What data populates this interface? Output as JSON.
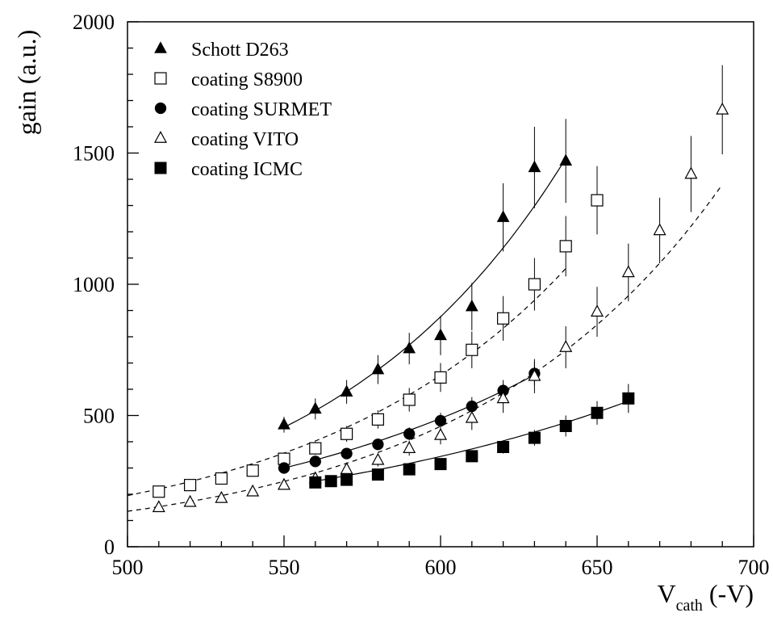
{
  "chart_data": {
    "type": "scatter",
    "title": "",
    "xlabel": "V_cath (-V)",
    "xlabel_main": "V",
    "xlabel_sub": "cath",
    "xlabel_unit": " (-V)",
    "ylabel": "gain (a.u.)",
    "xlim": [
      500,
      700
    ],
    "ylim": [
      0,
      2000
    ],
    "x_ticks": [
      500,
      550,
      600,
      650,
      700
    ],
    "y_ticks": [
      0,
      500,
      1000,
      1500,
      2000
    ],
    "grid": false,
    "legend_position": "top-left",
    "series": [
      {
        "name": "Schott D263",
        "marker": "filled-triangle",
        "line_style": "solid",
        "x": [
          550,
          560,
          570,
          580,
          590,
          600,
          610,
          620,
          630,
          640
        ],
        "y": [
          465,
          525,
          590,
          675,
          755,
          805,
          915,
          1255,
          1445,
          1470
        ],
        "err": [
          30,
          40,
          45,
          55,
          60,
          75,
          90,
          130,
          155,
          160
        ],
        "fit": {
          "x_from": 550,
          "x_to": 640,
          "y_at_from": 455,
          "y_at_to": 1480
        }
      },
      {
        "name": "coating S8900",
        "marker": "open-square",
        "line_style": "dashed",
        "x": [
          510,
          520,
          530,
          540,
          550,
          560,
          570,
          580,
          590,
          600,
          610,
          620,
          630,
          640,
          650
        ],
        "y": [
          210,
          235,
          260,
          290,
          335,
          375,
          430,
          485,
          560,
          645,
          750,
          870,
          1000,
          1145,
          1320
        ],
        "err": [
          10,
          12,
          14,
          16,
          20,
          25,
          30,
          35,
          45,
          55,
          70,
          85,
          100,
          115,
          130
        ],
        "fit": {
          "x_from": 500,
          "x_to": 640,
          "y_at_from": 195,
          "y_at_to": 1060
        }
      },
      {
        "name": "coating SURMET",
        "marker": "filled-circle",
        "line_style": "solid",
        "x": [
          550,
          560,
          570,
          580,
          590,
          600,
          610,
          620,
          630
        ],
        "y": [
          300,
          325,
          355,
          390,
          430,
          480,
          535,
          595,
          660
        ],
        "err": [
          15,
          18,
          20,
          22,
          25,
          30,
          35,
          40,
          45
        ],
        "fit": {
          "x_from": 550,
          "x_to": 630,
          "y_at_from": 300,
          "y_at_to": 655
        }
      },
      {
        "name": "coating VITO",
        "marker": "open-triangle",
        "line_style": "dashed",
        "x": [
          510,
          520,
          530,
          540,
          550,
          560,
          570,
          580,
          590,
          600,
          610,
          620,
          630,
          640,
          650,
          660,
          670,
          680,
          690
        ],
        "y": [
          150,
          170,
          185,
          210,
          235,
          260,
          295,
          330,
          375,
          425,
          490,
          565,
          650,
          760,
          895,
          1045,
          1205,
          1420,
          1665
        ],
        "err": [
          8,
          9,
          10,
          12,
          14,
          16,
          20,
          24,
          28,
          35,
          45,
          55,
          65,
          80,
          95,
          110,
          125,
          145,
          170
        ],
        "fit": {
          "x_from": 500,
          "x_to": 690,
          "y_at_from": 135,
          "y_at_to": 1380
        }
      },
      {
        "name": "coating ICMC",
        "marker": "filled-square",
        "line_style": "solid",
        "x": [
          560,
          565,
          570,
          580,
          590,
          600,
          610,
          620,
          630,
          640,
          650,
          660
        ],
        "y": [
          245,
          250,
          255,
          275,
          295,
          315,
          345,
          380,
          415,
          460,
          510,
          565
        ],
        "err": [
          12,
          12,
          13,
          14,
          15,
          17,
          20,
          25,
          30,
          40,
          45,
          55
        ],
        "fit": {
          "x_from": 560,
          "x_to": 660,
          "y_at_from": 250,
          "y_at_to": 555
        }
      }
    ]
  }
}
